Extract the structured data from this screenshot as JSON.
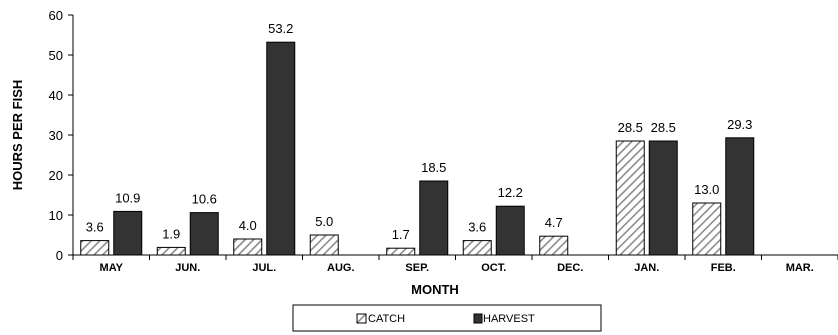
{
  "chart_data": {
    "type": "bar",
    "title": "",
    "xlabel": "MONTH",
    "ylabel": "HOURS PER FISH",
    "ylim": [
      0,
      60
    ],
    "yticks": [
      0,
      10,
      20,
      30,
      40,
      50,
      60
    ],
    "grid": false,
    "legend_position": "bottom",
    "categories": [
      "MAY",
      "JUN.",
      "JUL.",
      "AUG.",
      "SEP.",
      "OCT.",
      "DEC.",
      "JAN.",
      "FEB.",
      "MAR."
    ],
    "series": [
      {
        "name": "CATCH",
        "pattern": "diagonal-hatch",
        "color": "#7f7f7f",
        "values": [
          3.6,
          1.9,
          4.0,
          5.0,
          1.7,
          3.6,
          4.7,
          28.5,
          13.0,
          null
        ],
        "labels": [
          "3.6",
          "1.9",
          "4.0",
          "5.0",
          "1.7",
          "3.6",
          "4.7",
          "28.5",
          "13.0",
          null
        ]
      },
      {
        "name": "HARVEST",
        "pattern": "solid",
        "color": "#333333",
        "values": [
          10.9,
          10.6,
          53.2,
          null,
          18.5,
          12.2,
          null,
          28.5,
          29.3,
          null
        ],
        "labels": [
          "10.9",
          "10.6",
          "53.2",
          null,
          "18.5",
          "12.2",
          null,
          "28.5",
          "29.3",
          null
        ]
      }
    ]
  }
}
